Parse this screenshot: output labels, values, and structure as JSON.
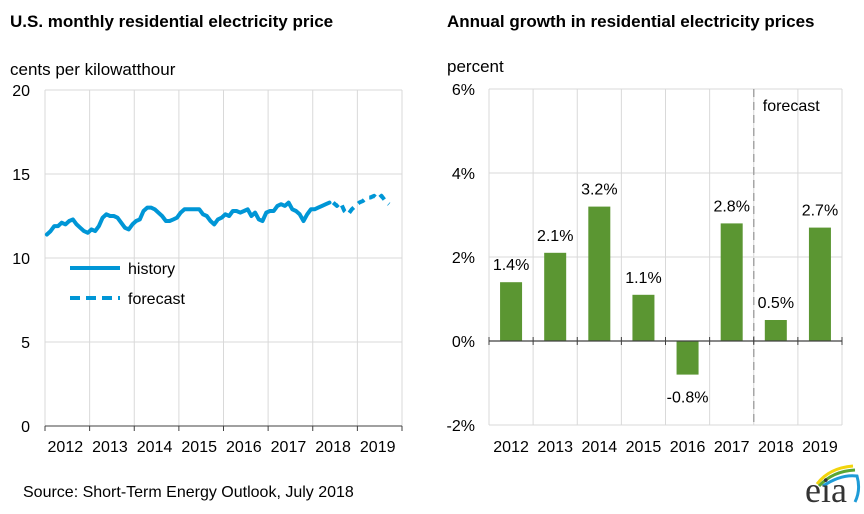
{
  "source": "Source: Short-Term Energy Outlook, July 2018",
  "logo_text": "eia",
  "colors": {
    "line": "#0096d6",
    "bar": "#5b9632",
    "grid": "#d9d9d9",
    "axis": "#404040",
    "divider": "#a6a6a6"
  },
  "chart_data": [
    {
      "type": "line",
      "title": "U.S. monthly residential electricity price",
      "subtitle": "cents per kilowatthour",
      "xlabel": "",
      "ylabel": "cents per kilowatthour",
      "ylim": [
        0,
        20
      ],
      "yticks": [
        "0",
        "5",
        "10",
        "15",
        "20"
      ],
      "yticks_values": [
        0,
        5,
        10,
        15,
        20
      ],
      "xticks": [
        "2012",
        "2013",
        "2014",
        "2015",
        "2016",
        "2017",
        "2018",
        "2019"
      ],
      "grid": true,
      "legend": {
        "placement": "middle-left",
        "entries": [
          "history",
          "forecast"
        ]
      },
      "series": [
        {
          "name": "history",
          "style": "solid",
          "start": "2012-01",
          "values": [
            11.4,
            11.6,
            11.9,
            11.9,
            12.1,
            12.0,
            12.2,
            12.3,
            12.0,
            11.8,
            11.6,
            11.5,
            11.7,
            11.6,
            11.9,
            12.4,
            12.6,
            12.5,
            12.5,
            12.4,
            12.1,
            11.8,
            11.7,
            12.0,
            12.2,
            12.3,
            12.8,
            13.0,
            13.0,
            12.9,
            12.7,
            12.5,
            12.2,
            12.2,
            12.3,
            12.4,
            12.7,
            12.9,
            12.9,
            12.9,
            12.9,
            12.9,
            12.6,
            12.5,
            12.2,
            12.0,
            12.3,
            12.4,
            12.6,
            12.5,
            12.8,
            12.8,
            12.7,
            12.8,
            12.9,
            12.5,
            12.7,
            12.3,
            12.2,
            12.7,
            12.8,
            12.8,
            13.1,
            13.2,
            13.1,
            13.3,
            12.9,
            12.8,
            12.6,
            12.2,
            12.6,
            12.9,
            12.9,
            13.0,
            13.1,
            13.2,
            13.3
          ]
        },
        {
          "name": "forecast",
          "style": "dashed",
          "start": "2018-06",
          "values": [
            13.3,
            13.1,
            13.3,
            12.8,
            12.6,
            12.9,
            13.1,
            13.3,
            13.4,
            13.6,
            13.6,
            13.7,
            13.5,
            13.7,
            13.4,
            13.2
          ]
        }
      ]
    },
    {
      "type": "bar",
      "title": "Annual growth in residential electricity prices",
      "subtitle": "percent",
      "xlabel": "",
      "ylabel": "percent",
      "ylim": [
        -2,
        6
      ],
      "yticks": [
        "-2%",
        "0%",
        "2%",
        "4%",
        "6%"
      ],
      "yticks_values": [
        -2,
        0,
        2,
        4,
        6
      ],
      "categories": [
        "2012",
        "2013",
        "2014",
        "2015",
        "2016",
        "2017",
        "2018",
        "2019"
      ],
      "values": [
        1.4,
        2.1,
        3.2,
        1.1,
        -0.8,
        2.8,
        0.5,
        2.7
      ],
      "data_labels": [
        "1.4%",
        "2.1%",
        "3.2%",
        "1.1%",
        "-0.8%",
        "2.8%",
        "0.5%",
        "2.7%"
      ],
      "annotation": "forecast",
      "forecast_starts_at": "2018",
      "grid": true
    }
  ]
}
